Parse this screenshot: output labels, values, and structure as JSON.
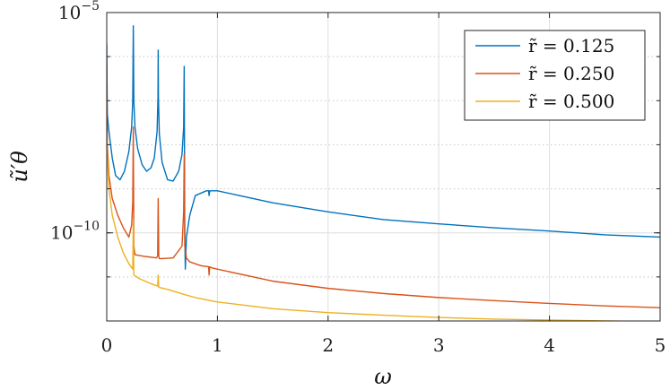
{
  "chart_data": {
    "type": "line",
    "title": "",
    "xlabel": "ω",
    "ylabel": "ũ′θ",
    "xlim": [
      0,
      5
    ],
    "ylim": [
      1e-12,
      1e-05
    ],
    "yscale": "log",
    "grid": true,
    "legend_position": "top-right",
    "x_ticks": [
      {
        "value": 0,
        "label": "0"
      },
      {
        "value": 1,
        "label": "1"
      },
      {
        "value": 2,
        "label": "2"
      },
      {
        "value": 3,
        "label": "3"
      },
      {
        "value": 4,
        "label": "4"
      },
      {
        "value": 5,
        "label": "5"
      }
    ],
    "y_ticks": [
      {
        "value": 1e-10,
        "base": "10",
        "exp": "−10"
      },
      {
        "value": 1e-05,
        "base": "10",
        "exp": "−5"
      }
    ],
    "series": [
      {
        "name": "r̃ = 0.125",
        "color": "#0072BD",
        "x": [
          0.0,
          0.005,
          0.02,
          0.05,
          0.08,
          0.12,
          0.16,
          0.2,
          0.225,
          0.235,
          0.24,
          0.245,
          0.255,
          0.28,
          0.32,
          0.36,
          0.4,
          0.43,
          0.455,
          0.463,
          0.465,
          0.467,
          0.475,
          0.5,
          0.55,
          0.6,
          0.65,
          0.68,
          0.695,
          0.7,
          0.705,
          0.71,
          0.72,
          0.75,
          0.8,
          0.9,
          0.92,
          0.925,
          0.93,
          0.95,
          1.0,
          1.2,
          1.5,
          2.0,
          2.5,
          3.0,
          3.5,
          4.0,
          4.5,
          5.0
        ],
        "y": [
          2e-06,
          5e-08,
          2e-08,
          5e-09,
          2e-09,
          1.6e-09,
          2.5e-09,
          7e-09,
          2.5e-08,
          1e-07,
          5e-06,
          1e-07,
          2.5e-08,
          8e-09,
          3.5e-09,
          2.5e-09,
          3e-09,
          5e-09,
          2e-08,
          1.2e-07,
          1.4e-06,
          1.2e-07,
          1.8e-08,
          4e-09,
          1.6e-09,
          1.5e-09,
          2.5e-09,
          6e-09,
          2.5e-08,
          6e-07,
          1e-10,
          1.5e-11,
          8e-11,
          2.5e-10,
          7e-10,
          9e-10,
          9e-10,
          7e-10,
          9e-10,
          9e-10,
          9e-10,
          7e-10,
          4.8e-10,
          3e-10,
          2e-10,
          1.6e-10,
          1.3e-10,
          1.1e-10,
          9e-11,
          8e-11
        ]
      },
      {
        "name": "r̃ = 0.250",
        "color": "#D95319",
        "x": [
          0.0,
          0.005,
          0.02,
          0.05,
          0.1,
          0.15,
          0.2,
          0.225,
          0.235,
          0.24,
          0.245,
          0.255,
          0.28,
          0.35,
          0.45,
          0.46,
          0.465,
          0.47,
          0.475,
          0.5,
          0.6,
          0.68,
          0.695,
          0.7,
          0.705,
          0.72,
          0.75,
          0.85,
          0.92,
          0.925,
          0.93,
          0.95,
          1.0,
          1.5,
          2.0,
          2.5,
          3.0,
          3.5,
          4.0,
          4.5,
          5.0
        ],
        "y": [
          6e-07,
          1e-08,
          2e-09,
          6e-10,
          2.5e-10,
          1.3e-10,
          8e-11,
          1.5e-10,
          5e-10,
          2.5e-08,
          5e-11,
          3.2e-11,
          3.1e-11,
          2.9e-11,
          2.7e-11,
          3e-11,
          6e-10,
          3e-11,
          2.6e-11,
          2.6e-11,
          2.7e-11,
          5e-11,
          3e-10,
          6e-09,
          5e-11,
          2.7e-11,
          2.2e-11,
          1.8e-11,
          1.7e-11,
          1.1e-11,
          1.7e-11,
          1.6e-11,
          1.5e-11,
          8e-12,
          5.5e-12,
          4.2e-12,
          3.4e-12,
          2.9e-12,
          2.5e-12,
          2.2e-12,
          2e-12
        ]
      },
      {
        "name": "r̃ = 0.500",
        "color": "#EDB120",
        "x": [
          0.0,
          0.005,
          0.02,
          0.05,
          0.1,
          0.15,
          0.2,
          0.235,
          0.24,
          0.245,
          0.3,
          0.4,
          0.46,
          0.465,
          0.47,
          0.55,
          0.7,
          0.8,
          1.0,
          1.5,
          2.0,
          2.5,
          3.0,
          3.5,
          4.0,
          4.5,
          5.0
        ],
        "y": [
          2e-08,
          5e-09,
          1e-09,
          2.5e-10,
          8e-11,
          3.5e-11,
          2e-11,
          1.5e-11,
          2e-10,
          1.1e-11,
          9e-12,
          7e-12,
          6.2e-12,
          1.1e-11,
          5.8e-12,
          5.2e-12,
          4e-12,
          3.4e-12,
          2.7e-12,
          1.9e-12,
          1.55e-12,
          1.35e-12,
          1.2e-12,
          1.1e-12,
          1.05e-12,
          1e-12,
          9.7e-13
        ]
      }
    ]
  }
}
